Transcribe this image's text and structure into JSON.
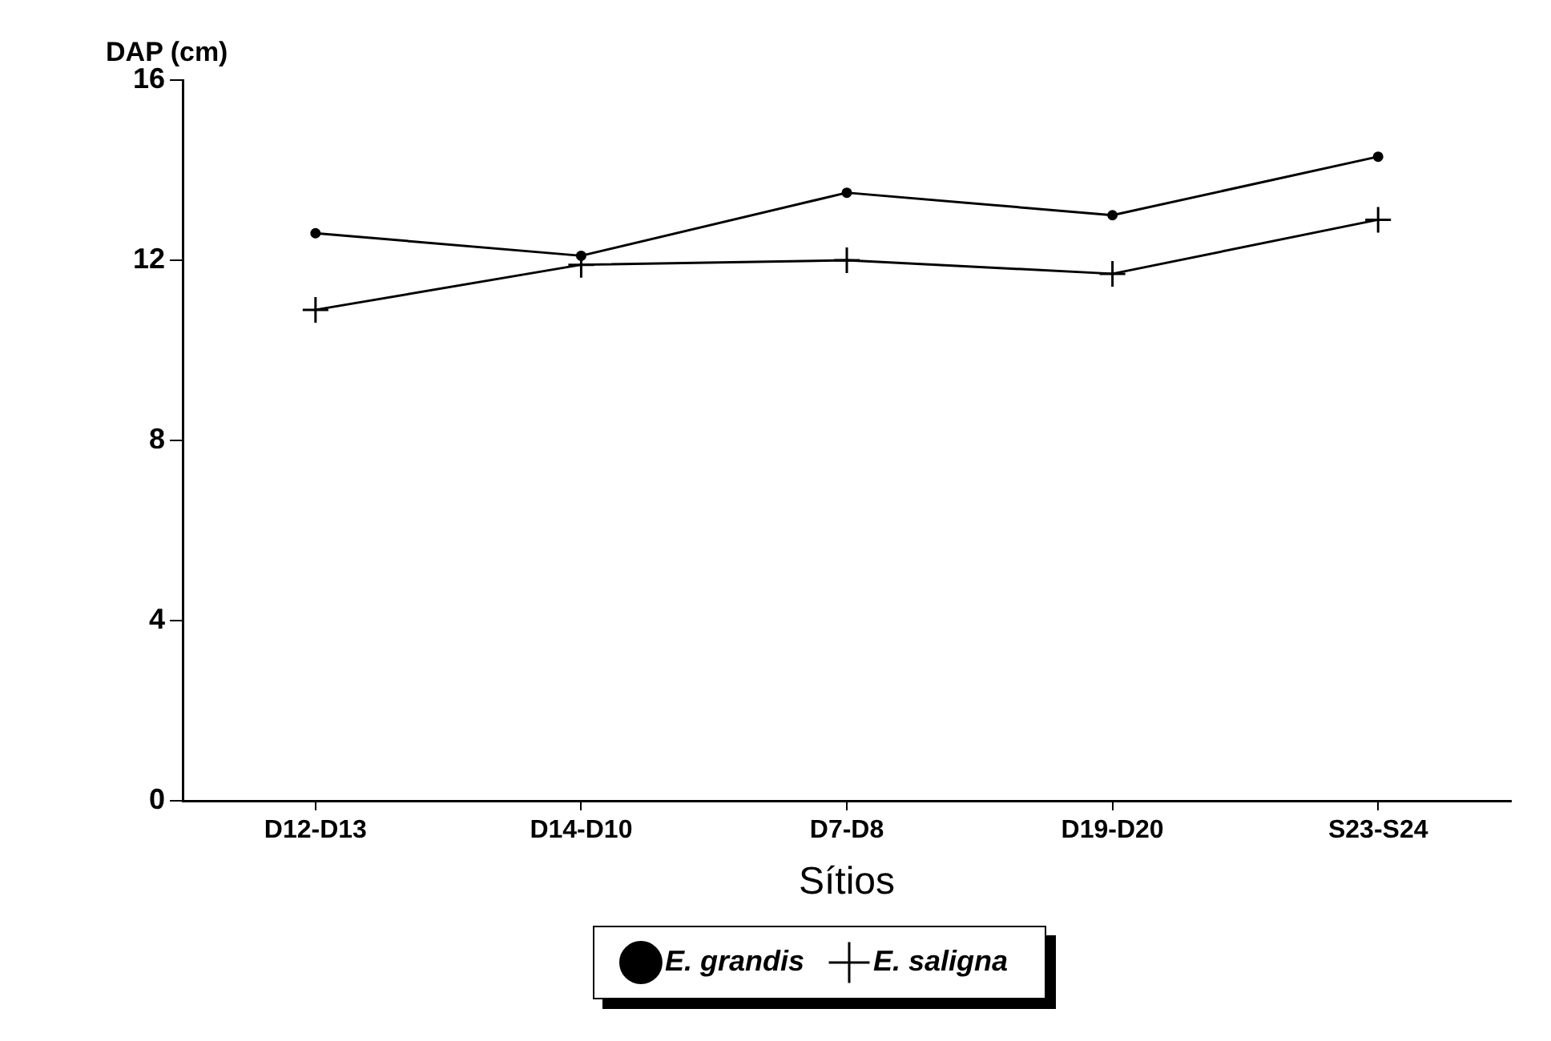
{
  "chart_data": {
    "type": "line",
    "xlabel": "Sítios",
    "ylabel": "DAP (cm)",
    "categories": [
      "D12-D13",
      "D14-D10",
      "D7-D8",
      "D19-D20",
      "S23-S24"
    ],
    "series": [
      {
        "name": "E. grandis",
        "color": "#000000",
        "marker": "circle",
        "values": [
          12.6,
          12.1,
          13.5,
          13.0,
          14.3
        ]
      },
      {
        "name": "E. saligna",
        "color": "#000000",
        "marker": "cross",
        "values": [
          10.9,
          11.9,
          12.0,
          11.7,
          12.9
        ]
      }
    ],
    "ylim": [
      0,
      16
    ],
    "yticks": [
      0,
      4,
      8,
      12,
      16
    ],
    "grid": false,
    "legend": "bottom",
    "line_style": "solid"
  }
}
